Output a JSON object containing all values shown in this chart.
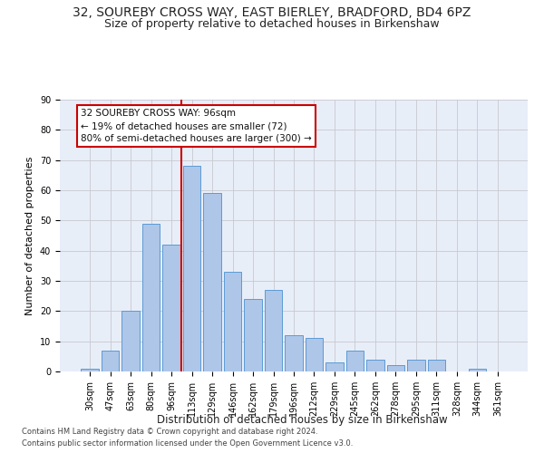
{
  "title": "32, SOUREBY CROSS WAY, EAST BIERLEY, BRADFORD, BD4 6PZ",
  "subtitle": "Size of property relative to detached houses in Birkenshaw",
  "xlabel": "Distribution of detached houses by size in Birkenshaw",
  "ylabel": "Number of detached properties",
  "footnote1": "Contains HM Land Registry data © Crown copyright and database right 2024.",
  "footnote2": "Contains public sector information licensed under the Open Government Licence v3.0.",
  "bar_labels": [
    "30sqm",
    "47sqm",
    "63sqm",
    "80sqm",
    "96sqm",
    "113sqm",
    "129sqm",
    "146sqm",
    "162sqm",
    "179sqm",
    "196sqm",
    "212sqm",
    "229sqm",
    "245sqm",
    "262sqm",
    "278sqm",
    "295sqm",
    "311sqm",
    "328sqm",
    "344sqm",
    "361sqm"
  ],
  "bar_values": [
    1,
    7,
    20,
    49,
    42,
    68,
    59,
    33,
    24,
    27,
    12,
    11,
    3,
    7,
    4,
    2,
    4,
    4,
    0,
    1,
    0
  ],
  "bar_color": "#aec6e8",
  "bar_edgecolor": "#5b9bd5",
  "vline_x": 4.5,
  "vline_color": "#cc0000",
  "annotation_line1": "32 SOUREBY CROSS WAY: 96sqm",
  "annotation_line2": "← 19% of detached houses are smaller (72)",
  "annotation_line3": "80% of semi-detached houses are larger (300) →",
  "ylim": [
    0,
    90
  ],
  "yticks": [
    0,
    10,
    20,
    30,
    40,
    50,
    60,
    70,
    80,
    90
  ],
  "background_color": "#e8eef8",
  "grid_color": "#c8c8d0",
  "title_fontsize": 10,
  "subtitle_fontsize": 9,
  "axis_label_fontsize": 8.5,
  "ylabel_fontsize": 8,
  "tick_fontsize": 7,
  "annotation_fontsize": 7.5,
  "footnote_fontsize": 6
}
